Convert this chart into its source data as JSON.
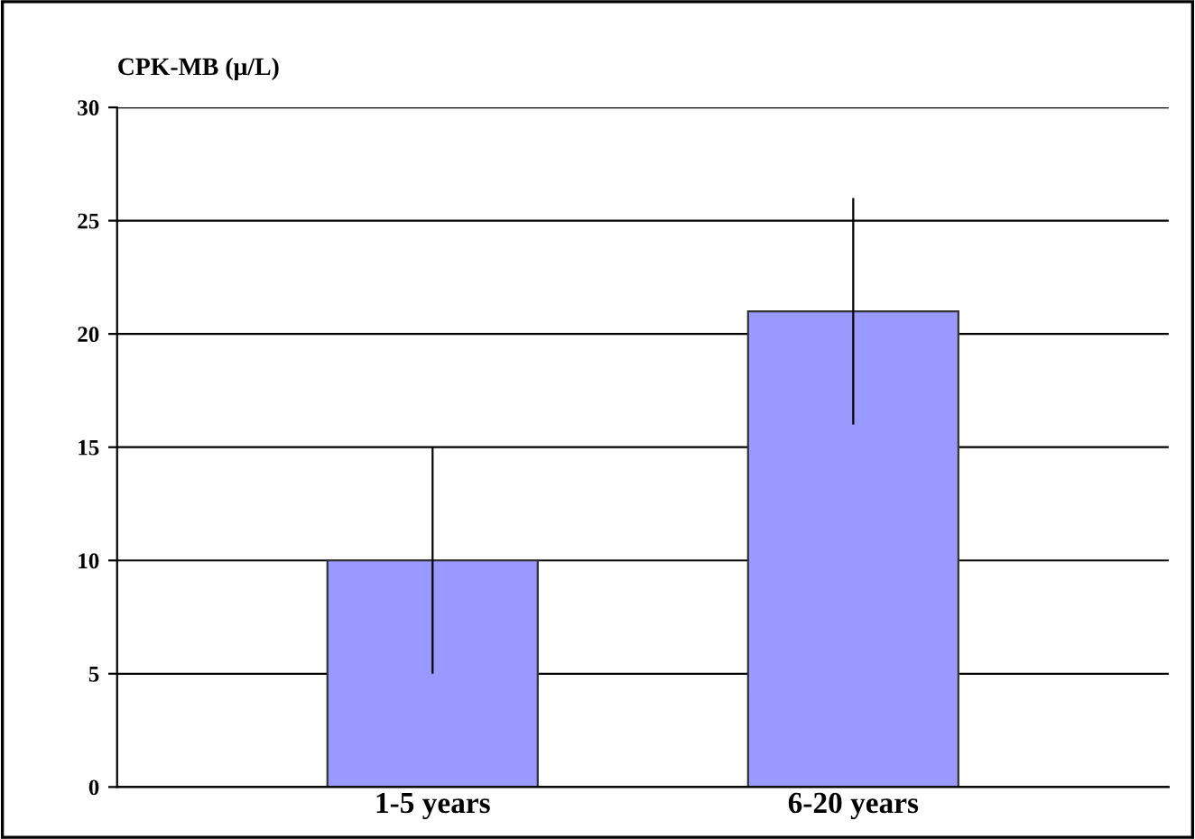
{
  "chart_data": {
    "type": "bar",
    "ylabel": "CPK-MB (μ/L)",
    "categories": [
      "1-5 years",
      "6-20 years"
    ],
    "values": [
      10,
      21
    ],
    "errors": [
      5,
      5
    ],
    "color": "#9999ff",
    "ylim": [
      0,
      30
    ],
    "yticks": [
      0,
      5,
      10,
      15,
      20,
      25,
      30
    ],
    "grid": "y"
  }
}
